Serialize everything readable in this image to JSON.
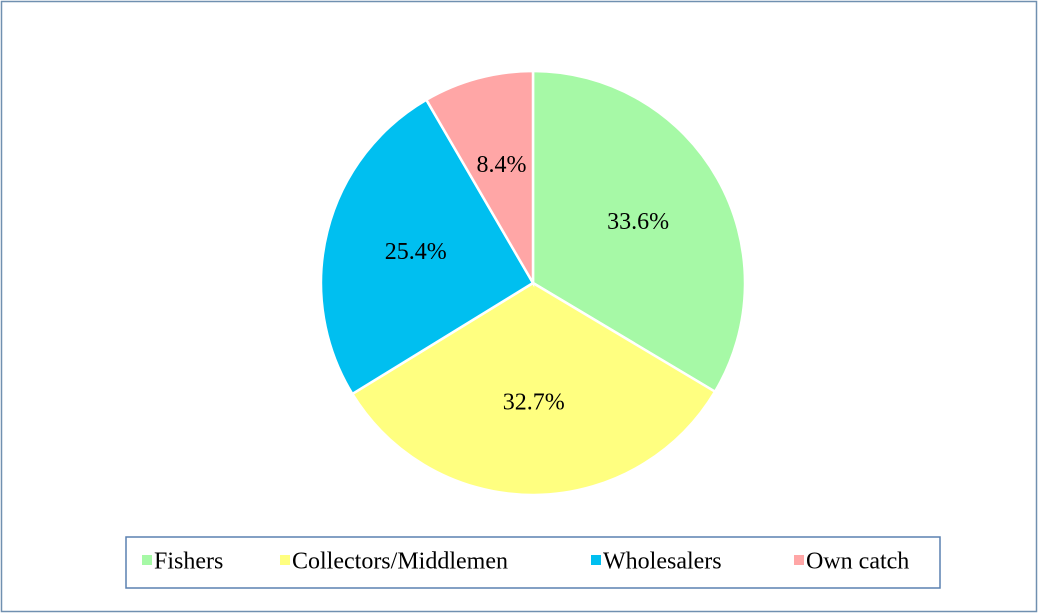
{
  "chart_data": {
    "type": "pie",
    "categories": [
      "Fishers",
      "Collectors/Middlemen",
      "Wholesalers",
      "Own catch"
    ],
    "values": [
      33.6,
      32.7,
      25.4,
      8.4
    ],
    "value_labels": [
      "33.6%",
      "32.7%",
      "25.4%",
      "8.4%"
    ],
    "colors": [
      "#a6f9a6",
      "#ffff80",
      "#00bff0",
      "#ffa6a6"
    ],
    "legend": "bottom"
  }
}
